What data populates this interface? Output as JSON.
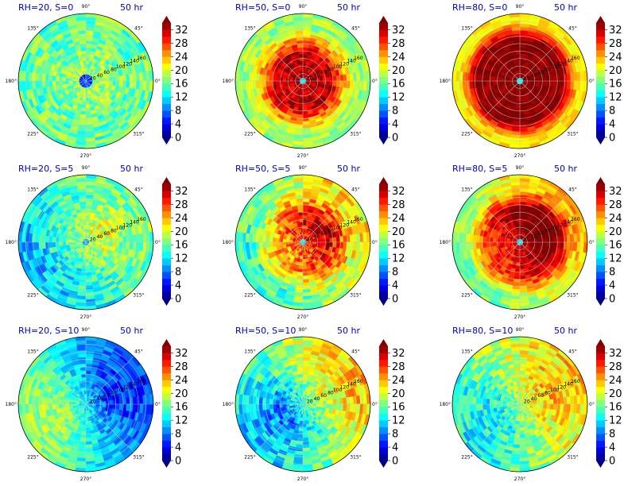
{
  "chart_data": {
    "type": "heatmap",
    "projection": "polar",
    "time_label": "50 hr",
    "colorbar": {
      "ticks": [
        0,
        4,
        8,
        12,
        16,
        20,
        24,
        28,
        32
      ],
      "range": [
        0,
        34
      ],
      "colormap": "jet",
      "extend": "both"
    },
    "angle_tick_labels": [
      "0°",
      "45°",
      "90°",
      "135°",
      "180°",
      "225°",
      "270°",
      "315°"
    ],
    "radial_tick_labels": [
      "20",
      "40",
      "60",
      "80",
      "100",
      "120",
      "140",
      "160"
    ],
    "radial_range": [
      0,
      180
    ],
    "grid": true,
    "panels": [
      {
        "title": "RH=20, S=0",
        "rh": 20,
        "shear": 0,
        "inner_radius": 18,
        "inner_value": 6,
        "core_radius": 35,
        "core_value": 18,
        "outer_value": 16,
        "asym_amp": 0,
        "asym_peak_deg": 0,
        "noise_amp": 4
      },
      {
        "title": "RH=50, S=0",
        "rh": 50,
        "shear": 0,
        "inner_radius": 6,
        "inner_value": 12,
        "core_radius": 75,
        "core_value": 32,
        "outer_value": 18,
        "asym_amp": 0,
        "asym_peak_deg": 0,
        "noise_amp": 3
      },
      {
        "title": "RH=80, S=0",
        "rh": 80,
        "shear": 0,
        "inner_radius": 5,
        "inner_value": 12,
        "core_radius": 115,
        "core_value": 34,
        "outer_value": 22,
        "asym_amp": 0,
        "asym_peak_deg": 0,
        "noise_amp": 2
      },
      {
        "title": "RH=20, S=5",
        "rh": 20,
        "shear": 5,
        "inner_radius": 6,
        "inner_value": 10,
        "core_radius": 45,
        "core_value": 18,
        "outer_value": 14,
        "asym_amp": 3,
        "asym_peak_deg": 30,
        "noise_amp": 4
      },
      {
        "title": "RH=50, S=5",
        "rh": 50,
        "shear": 5,
        "inner_radius": 6,
        "inner_value": 12,
        "core_radius": 70,
        "core_value": 28,
        "outer_value": 18,
        "asym_amp": 4,
        "asym_peak_deg": 30,
        "noise_amp": 4
      },
      {
        "title": "RH=80, S=5",
        "rh": 80,
        "shear": 5,
        "inner_radius": 5,
        "inner_value": 12,
        "core_radius": 90,
        "core_value": 32,
        "outer_value": 20,
        "asym_amp": 4,
        "asym_peak_deg": 30,
        "noise_amp": 3
      },
      {
        "title": "RH=20, S=10",
        "rh": 20,
        "shear": 10,
        "inner_radius": 0,
        "inner_value": 12,
        "core_radius": 60,
        "core_value": 12,
        "outer_value": 12,
        "asym_amp": -6,
        "asym_peak_deg": 20,
        "noise_amp": 3
      },
      {
        "title": "RH=50, S=10",
        "rh": 50,
        "shear": 10,
        "inner_radius": 0,
        "inner_value": 12,
        "core_radius": 60,
        "core_value": 14,
        "outer_value": 17,
        "asym_amp": 6,
        "asym_peak_deg": 30,
        "noise_amp": 4
      },
      {
        "title": "RH=80, S=10",
        "rh": 80,
        "shear": 10,
        "inner_radius": 0,
        "inner_value": 12,
        "core_radius": 70,
        "core_value": 18,
        "outer_value": 18,
        "asym_amp": 5,
        "asym_peak_deg": 25,
        "noise_amp": 4
      }
    ]
  }
}
